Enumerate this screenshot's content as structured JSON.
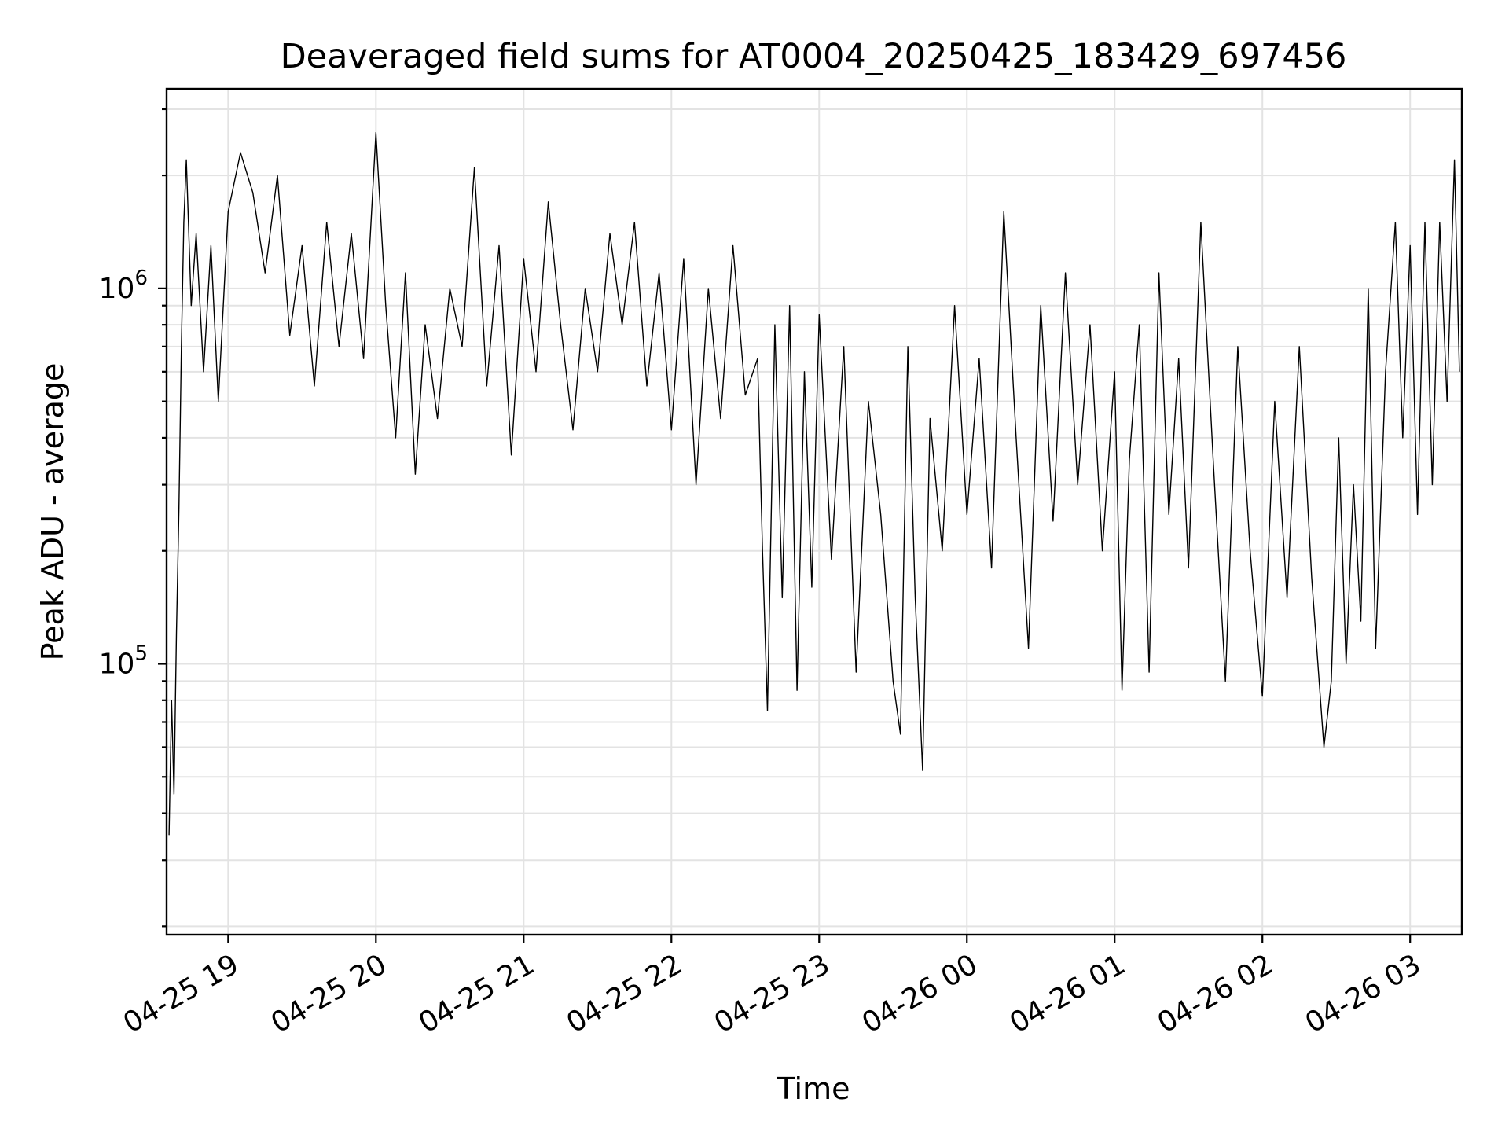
{
  "chart_data": {
    "type": "line",
    "title": "Deaveraged field sums for AT0004_20250425_183429_697456",
    "xlabel": "Time",
    "ylabel": "Peak ADU - average",
    "yscale": "log",
    "xlim": [
      "2025-04-25T18:35",
      "2025-04-26T03:21"
    ],
    "ylim": [
      19000,
      3400000
    ],
    "grid": true,
    "x_ticks": [
      {
        "t": "2025-04-25T19:00",
        "label": "04-25 19"
      },
      {
        "t": "2025-04-25T20:00",
        "label": "04-25 20"
      },
      {
        "t": "2025-04-25T21:00",
        "label": "04-25 21"
      },
      {
        "t": "2025-04-25T22:00",
        "label": "04-25 22"
      },
      {
        "t": "2025-04-25T23:00",
        "label": "04-25 23"
      },
      {
        "t": "2025-04-26T00:00",
        "label": "04-26 00"
      },
      {
        "t": "2025-04-26T01:00",
        "label": "04-26 01"
      },
      {
        "t": "2025-04-26T02:00",
        "label": "04-26 02"
      },
      {
        "t": "2025-04-26T03:00",
        "label": "04-26 03"
      }
    ],
    "y_major_ticks": [
      {
        "value": 100000,
        "base": "10",
        "exp": "5"
      },
      {
        "value": 1000000,
        "base": "10",
        "exp": "6"
      }
    ],
    "y_minor_ticks": [
      20000,
      30000,
      40000,
      50000,
      60000,
      70000,
      80000,
      90000,
      200000,
      300000,
      400000,
      500000,
      600000,
      700000,
      800000,
      900000,
      2000000,
      3000000
    ],
    "series": [
      {
        "color": "#000000",
        "points": [
          [
            "2025-04-25T18:36",
            35000
          ],
          [
            "2025-04-25T18:37",
            80000
          ],
          [
            "2025-04-25T18:38",
            45000
          ],
          [
            "2025-04-25T18:39",
            120000
          ],
          [
            "2025-04-25T18:40",
            260000
          ],
          [
            "2025-04-25T18:41",
            700000
          ],
          [
            "2025-04-25T18:42",
            1500000
          ],
          [
            "2025-04-25T18:43",
            2200000
          ],
          [
            "2025-04-25T18:45",
            900000
          ],
          [
            "2025-04-25T18:47",
            1400000
          ],
          [
            "2025-04-25T18:50",
            600000
          ],
          [
            "2025-04-25T18:53",
            1300000
          ],
          [
            "2025-04-25T18:56",
            500000
          ],
          [
            "2025-04-25T19:00",
            1600000
          ],
          [
            "2025-04-25T19:05",
            2300000
          ],
          [
            "2025-04-25T19:10",
            1800000
          ],
          [
            "2025-04-25T19:15",
            1100000
          ],
          [
            "2025-04-25T19:20",
            2000000
          ],
          [
            "2025-04-25T19:25",
            750000
          ],
          [
            "2025-04-25T19:30",
            1300000
          ],
          [
            "2025-04-25T19:35",
            550000
          ],
          [
            "2025-04-25T19:40",
            1500000
          ],
          [
            "2025-04-25T19:45",
            700000
          ],
          [
            "2025-04-25T19:50",
            1400000
          ],
          [
            "2025-04-25T19:55",
            650000
          ],
          [
            "2025-04-25T20:00",
            2600000
          ],
          [
            "2025-04-25T20:04",
            900000
          ],
          [
            "2025-04-25T20:08",
            400000
          ],
          [
            "2025-04-25T20:12",
            1100000
          ],
          [
            "2025-04-25T20:16",
            320000
          ],
          [
            "2025-04-25T20:20",
            800000
          ],
          [
            "2025-04-25T20:25",
            450000
          ],
          [
            "2025-04-25T20:30",
            1000000
          ],
          [
            "2025-04-25T20:35",
            700000
          ],
          [
            "2025-04-25T20:40",
            2100000
          ],
          [
            "2025-04-25T20:45",
            550000
          ],
          [
            "2025-04-25T20:50",
            1300000
          ],
          [
            "2025-04-25T20:55",
            360000
          ],
          [
            "2025-04-25T21:00",
            1200000
          ],
          [
            "2025-04-25T21:05",
            600000
          ],
          [
            "2025-04-25T21:10",
            1700000
          ],
          [
            "2025-04-25T21:15",
            800000
          ],
          [
            "2025-04-25T21:20",
            420000
          ],
          [
            "2025-04-25T21:25",
            1000000
          ],
          [
            "2025-04-25T21:30",
            600000
          ],
          [
            "2025-04-25T21:35",
            1400000
          ],
          [
            "2025-04-25T21:40",
            800000
          ],
          [
            "2025-04-25T21:45",
            1500000
          ],
          [
            "2025-04-25T21:50",
            550000
          ],
          [
            "2025-04-25T21:55",
            1100000
          ],
          [
            "2025-04-25T22:00",
            420000
          ],
          [
            "2025-04-25T22:05",
            1200000
          ],
          [
            "2025-04-25T22:10",
            300000
          ],
          [
            "2025-04-25T22:15",
            1000000
          ],
          [
            "2025-04-25T22:20",
            450000
          ],
          [
            "2025-04-25T22:25",
            1300000
          ],
          [
            "2025-04-25T22:30",
            520000
          ],
          [
            "2025-04-25T22:35",
            650000
          ],
          [
            "2025-04-25T22:37",
            200000
          ],
          [
            "2025-04-25T22:39",
            75000
          ],
          [
            "2025-04-25T22:42",
            800000
          ],
          [
            "2025-04-25T22:45",
            150000
          ],
          [
            "2025-04-25T22:48",
            900000
          ],
          [
            "2025-04-25T22:51",
            85000
          ],
          [
            "2025-04-25T22:54",
            600000
          ],
          [
            "2025-04-25T22:57",
            160000
          ],
          [
            "2025-04-25T23:00",
            850000
          ],
          [
            "2025-04-25T23:05",
            190000
          ],
          [
            "2025-04-25T23:10",
            700000
          ],
          [
            "2025-04-25T23:15",
            95000
          ],
          [
            "2025-04-25T23:20",
            500000
          ],
          [
            "2025-04-25T23:25",
            250000
          ],
          [
            "2025-04-25T23:30",
            90000
          ],
          [
            "2025-04-25T23:33",
            65000
          ],
          [
            "2025-04-25T23:36",
            700000
          ],
          [
            "2025-04-25T23:39",
            150000
          ],
          [
            "2025-04-25T23:42",
            52000
          ],
          [
            "2025-04-25T23:45",
            450000
          ],
          [
            "2025-04-25T23:50",
            200000
          ],
          [
            "2025-04-25T23:55",
            900000
          ],
          [
            "2025-04-26T00:00",
            250000
          ],
          [
            "2025-04-26T00:05",
            650000
          ],
          [
            "2025-04-26T00:10",
            180000
          ],
          [
            "2025-04-26T00:15",
            1600000
          ],
          [
            "2025-04-26T00:20",
            400000
          ],
          [
            "2025-04-26T00:25",
            110000
          ],
          [
            "2025-04-26T00:30",
            900000
          ],
          [
            "2025-04-26T00:35",
            240000
          ],
          [
            "2025-04-26T00:40",
            1100000
          ],
          [
            "2025-04-26T00:45",
            300000
          ],
          [
            "2025-04-26T00:50",
            800000
          ],
          [
            "2025-04-26T00:55",
            200000
          ],
          [
            "2025-04-26T01:00",
            600000
          ],
          [
            "2025-04-26T01:03",
            85000
          ],
          [
            "2025-04-26T01:06",
            350000
          ],
          [
            "2025-04-26T01:10",
            800000
          ],
          [
            "2025-04-26T01:14",
            95000
          ],
          [
            "2025-04-26T01:18",
            1100000
          ],
          [
            "2025-04-26T01:22",
            250000
          ],
          [
            "2025-04-26T01:26",
            650000
          ],
          [
            "2025-04-26T01:30",
            180000
          ],
          [
            "2025-04-26T01:35",
            1500000
          ],
          [
            "2025-04-26T01:40",
            350000
          ],
          [
            "2025-04-26T01:45",
            90000
          ],
          [
            "2025-04-26T01:50",
            700000
          ],
          [
            "2025-04-26T01:55",
            200000
          ],
          [
            "2025-04-26T02:00",
            82000
          ],
          [
            "2025-04-26T02:05",
            500000
          ],
          [
            "2025-04-26T02:10",
            150000
          ],
          [
            "2025-04-26T02:15",
            700000
          ],
          [
            "2025-04-26T02:20",
            170000
          ],
          [
            "2025-04-26T02:25",
            60000
          ],
          [
            "2025-04-26T02:28",
            90000
          ],
          [
            "2025-04-26T02:31",
            400000
          ],
          [
            "2025-04-26T02:34",
            100000
          ],
          [
            "2025-04-26T02:37",
            300000
          ],
          [
            "2025-04-26T02:40",
            130000
          ],
          [
            "2025-04-26T02:43",
            1000000
          ],
          [
            "2025-04-26T02:46",
            110000
          ],
          [
            "2025-04-26T02:50",
            600000
          ],
          [
            "2025-04-26T02:54",
            1500000
          ],
          [
            "2025-04-26T02:57",
            400000
          ],
          [
            "2025-04-26T03:00",
            1300000
          ],
          [
            "2025-04-26T03:03",
            250000
          ],
          [
            "2025-04-26T03:06",
            1500000
          ],
          [
            "2025-04-26T03:09",
            300000
          ],
          [
            "2025-04-26T03:12",
            1500000
          ],
          [
            "2025-04-26T03:15",
            500000
          ],
          [
            "2025-04-26T03:18",
            2200000
          ],
          [
            "2025-04-26T03:20",
            600000
          ]
        ]
      }
    ]
  }
}
